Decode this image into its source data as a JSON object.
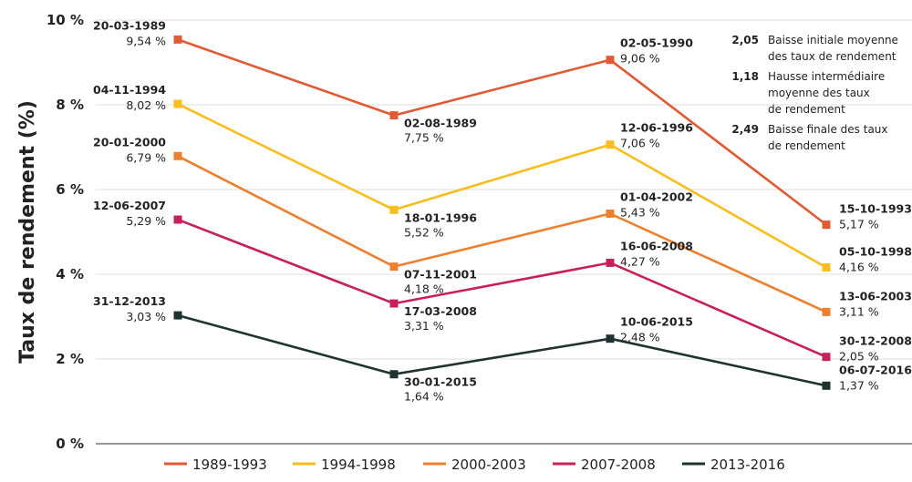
{
  "chart_data": {
    "type": "line",
    "ylabel": "Taux de rendement (%)",
    "ylim": [
      0,
      10
    ],
    "yticks": [
      "0 %",
      "2 %",
      "4 %",
      "6 %",
      "8 %",
      "10 %"
    ],
    "grid": "horizontal",
    "legend_position": "bottom",
    "series": [
      {
        "name": "1989-1993",
        "color": "#E05A33",
        "points": [
          {
            "date": "20-03-1989",
            "value": 9.54,
            "label": "9,54 %"
          },
          {
            "date": "02-08-1989",
            "value": 7.75,
            "label": "7,75 %"
          },
          {
            "date": "02-05-1990",
            "value": 9.06,
            "label": "9,06 %"
          },
          {
            "date": "15-10-1993",
            "value": 5.17,
            "label": "5,17 %"
          }
        ]
      },
      {
        "name": "1994-1998",
        "color": "#F9BE1E",
        "points": [
          {
            "date": "04-11-1994",
            "value": 8.02,
            "label": "8,02 %"
          },
          {
            "date": "18-01-1996",
            "value": 5.52,
            "label": "5,52 %"
          },
          {
            "date": "12-06-1996",
            "value": 7.06,
            "label": "7,06 %"
          },
          {
            "date": "05-10-1998",
            "value": 4.16,
            "label": "4,16 %"
          }
        ]
      },
      {
        "name": "2000-2003",
        "color": "#EE7F2D",
        "points": [
          {
            "date": "20-01-2000",
            "value": 6.79,
            "label": "6,79 %"
          },
          {
            "date": "07-11-2001",
            "value": 4.18,
            "label": "4,18 %"
          },
          {
            "date": "01-04-2002",
            "value": 5.43,
            "label": "5,43 %"
          },
          {
            "date": "13-06-2003",
            "value": 3.11,
            "label": "3,11 %"
          }
        ]
      },
      {
        "name": "2007-2008",
        "color": "#C8205C",
        "points": [
          {
            "date": "12-06-2007",
            "value": 5.29,
            "label": "5,29 %"
          },
          {
            "date": "17-03-2008",
            "value": 3.31,
            "label": "3,31 %"
          },
          {
            "date": "16-06-2008",
            "value": 4.27,
            "label": "4,27 %"
          },
          {
            "date": "30-12-2008",
            "value": 2.05,
            "label": "2,05 %"
          }
        ]
      },
      {
        "name": "2013-2016",
        "color": "#1E3330",
        "points": [
          {
            "date": "31-12-2013",
            "value": 3.03,
            "label": "3,03 %"
          },
          {
            "date": "30-01-2015",
            "value": 1.64,
            "label": "1,64 %"
          },
          {
            "date": "10-06-2015",
            "value": 2.48,
            "label": "2,48 %"
          },
          {
            "date": "06-07-2016",
            "value": 1.37,
            "label": "1,37 %"
          }
        ]
      }
    ],
    "annotations": [
      {
        "value": "2,05",
        "lines": [
          "Baisse initiale moyenne",
          "des taux de rendement"
        ]
      },
      {
        "value": "1,18",
        "lines": [
          "Hausse intermédiaire",
          "moyenne des taux",
          "de rendement"
        ]
      },
      {
        "value": "2,49",
        "lines": [
          "Baisse finale des taux",
          "de rendement"
        ]
      }
    ]
  }
}
